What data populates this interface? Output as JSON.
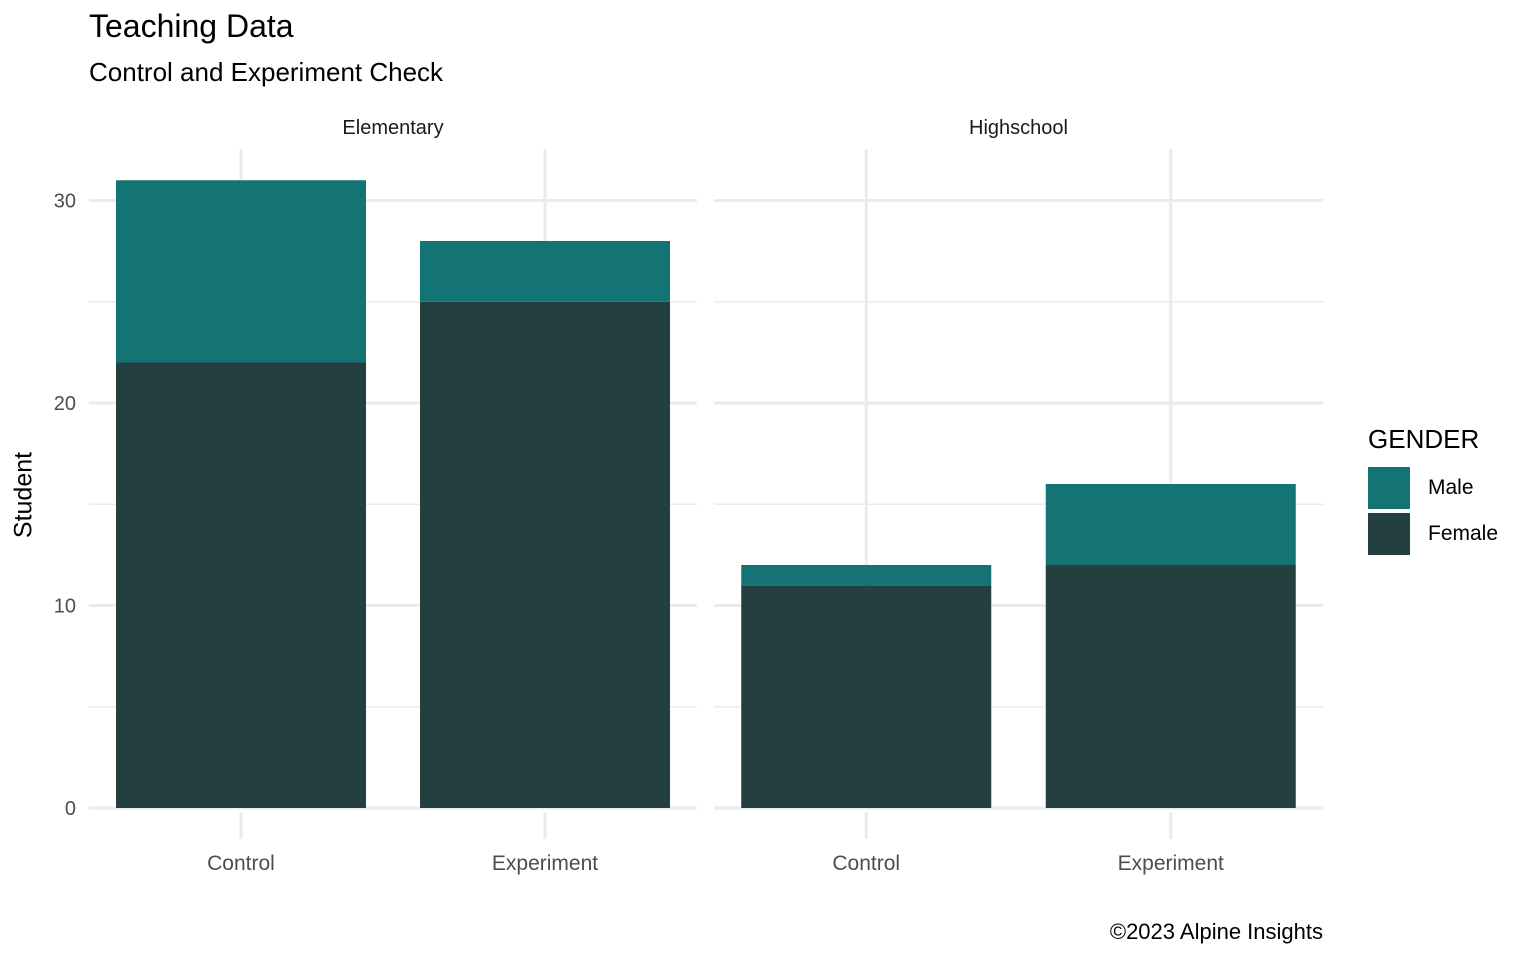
{
  "title": "Teaching Data",
  "subtitle": "Control and Experiment Check",
  "caption": "©2023 Alpine Insights",
  "colors": {
    "male": "#147373",
    "female": "#243f40",
    "grid": "#ebebeb",
    "tick_text": "#4d4d4d"
  },
  "chart_data": {
    "type": "bar",
    "stacked": true,
    "facets": [
      "Elementary",
      "Highschool"
    ],
    "categories": [
      "Control",
      "Experiment"
    ],
    "ylabel": "Student",
    "xlabel": "",
    "ylim": [
      0,
      31
    ],
    "yticks": [
      0,
      10,
      20,
      30
    ],
    "grid": true,
    "legend": {
      "title": "GENDER",
      "position": "right"
    },
    "series": [
      {
        "name": "Female",
        "color": "#243f40",
        "values": {
          "Elementary": [
            22,
            25
          ],
          "Highschool": [
            11,
            12
          ]
        }
      },
      {
        "name": "Male",
        "color": "#147373",
        "values": {
          "Elementary": [
            9,
            3
          ],
          "Highschool": [
            1,
            4
          ]
        }
      }
    ]
  }
}
